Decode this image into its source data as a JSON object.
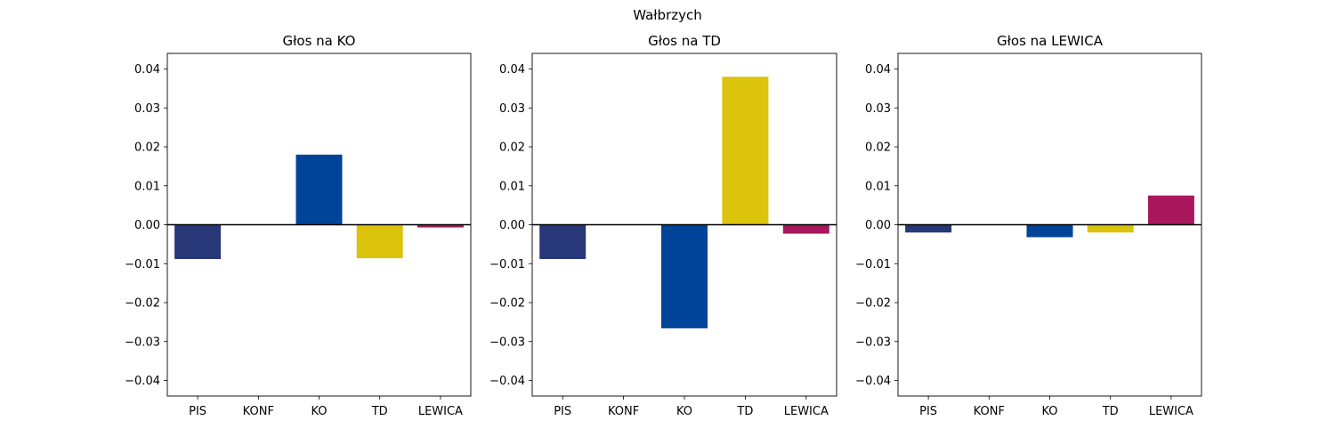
{
  "figure": {
    "suptitle": "Wałbrzych"
  },
  "chart_data": [
    {
      "type": "bar",
      "title": "Głos na KO",
      "categories": [
        "PIS",
        "KONF",
        "KO",
        "TD",
        "LEWICA"
      ],
      "values": [
        -0.0088,
        0.0,
        0.018,
        -0.0086,
        -0.0007
      ],
      "colors": [
        "#283777",
        "#283777",
        "#00449a",
        "#dcc40c",
        "#a8175c"
      ],
      "ylim": [
        -0.044,
        0.044
      ],
      "yticks": [
        -0.04,
        -0.03,
        -0.02,
        -0.01,
        0.0,
        0.01,
        0.02,
        0.03,
        0.04
      ],
      "ytick_labels": [
        "−0.04",
        "−0.03",
        "−0.02",
        "−0.01",
        "0.00",
        "0.01",
        "0.02",
        "0.03",
        "0.04"
      ],
      "zero_line": true,
      "grid": false,
      "xlabel": "",
      "ylabel": ""
    },
    {
      "type": "bar",
      "title": "Głos na TD",
      "categories": [
        "PIS",
        "KONF",
        "KO",
        "TD",
        "LEWICA"
      ],
      "values": [
        -0.0088,
        0.0,
        -0.0266,
        0.038,
        -0.0023
      ],
      "colors": [
        "#283777",
        "#283777",
        "#00449a",
        "#dcc40c",
        "#a8175c"
      ],
      "ylim": [
        -0.044,
        0.044
      ],
      "yticks": [
        -0.04,
        -0.03,
        -0.02,
        -0.01,
        0.0,
        0.01,
        0.02,
        0.03,
        0.04
      ],
      "ytick_labels": [
        "−0.04",
        "−0.03",
        "−0.02",
        "−0.01",
        "0.00",
        "0.01",
        "0.02",
        "0.03",
        "0.04"
      ],
      "zero_line": true,
      "grid": false,
      "xlabel": "",
      "ylabel": ""
    },
    {
      "type": "bar",
      "title": "Głos na LEWICA",
      "categories": [
        "PIS",
        "KONF",
        "KO",
        "TD",
        "LEWICA"
      ],
      "values": [
        -0.002,
        0.0,
        -0.0032,
        -0.002,
        0.0075
      ],
      "colors": [
        "#283777",
        "#283777",
        "#00449a",
        "#dcc40c",
        "#a8175c"
      ],
      "ylim": [
        -0.044,
        0.044
      ],
      "yticks": [
        -0.04,
        -0.03,
        -0.02,
        -0.01,
        0.0,
        0.01,
        0.02,
        0.03,
        0.04
      ],
      "ytick_labels": [
        "−0.04",
        "−0.03",
        "−0.02",
        "−0.01",
        "0.00",
        "0.01",
        "0.02",
        "0.03",
        "0.04"
      ],
      "zero_line": true,
      "grid": false,
      "xlabel": "",
      "ylabel": ""
    }
  ]
}
